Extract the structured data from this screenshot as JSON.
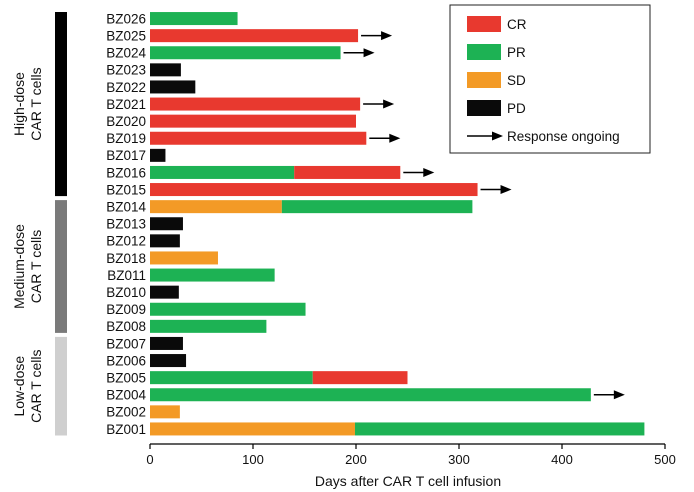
{
  "chart_data": {
    "type": "bar",
    "orientation": "horizontal",
    "stacked": true,
    "xlabel": "Days after CAR T cell infusion",
    "xlim": [
      0,
      500
    ],
    "xticks": [
      0,
      100,
      200,
      300,
      400,
      500
    ],
    "colors": {
      "CR": "#e8392f",
      "PR": "#1db254",
      "SD": "#f39a26",
      "PD": "#0a0a0a"
    },
    "legend": {
      "placement": "top-right",
      "entries": [
        {
          "key": "CR",
          "label": "CR"
        },
        {
          "key": "PR",
          "label": "PR"
        },
        {
          "key": "SD",
          "label": "SD"
        },
        {
          "key": "PD",
          "label": "PD"
        }
      ],
      "ongoing_label": "Response ongoing"
    },
    "groups": [
      {
        "label": "High-dose CAR T cells",
        "lines": [
          "High-dose",
          "CAR T cells"
        ],
        "color": "#000000",
        "from": "BZ026",
        "to": "BZ015"
      },
      {
        "label": "Medium-dose CAR T cells",
        "lines": [
          "Medium-dose",
          "CAR T cells"
        ],
        "color": "#7a7a7a",
        "from": "BZ014",
        "to": "BZ008"
      },
      {
        "label": "Low-dose CAR T cells",
        "lines": [
          "Low-dose",
          "CAR T cells"
        ],
        "color": "#cfcfcf",
        "from": "BZ007",
        "to": "BZ001"
      }
    ],
    "patients": [
      {
        "id": "BZ026",
        "segments": [
          {
            "status": "PR",
            "start": 0,
            "end": 85
          }
        ],
        "ongoing": false
      },
      {
        "id": "BZ025",
        "segments": [
          {
            "status": "CR",
            "start": 0,
            "end": 202
          }
        ],
        "ongoing": true
      },
      {
        "id": "BZ024",
        "segments": [
          {
            "status": "PR",
            "start": 0,
            "end": 185
          }
        ],
        "ongoing": true
      },
      {
        "id": "BZ023",
        "segments": [
          {
            "status": "PD",
            "start": 0,
            "end": 30
          }
        ],
        "ongoing": false
      },
      {
        "id": "BZ022",
        "segments": [
          {
            "status": "PD",
            "start": 0,
            "end": 44
          }
        ],
        "ongoing": false
      },
      {
        "id": "BZ021",
        "segments": [
          {
            "status": "CR",
            "start": 0,
            "end": 204
          }
        ],
        "ongoing": true
      },
      {
        "id": "BZ020",
        "segments": [
          {
            "status": "CR",
            "start": 0,
            "end": 200
          }
        ],
        "ongoing": false
      },
      {
        "id": "BZ019",
        "segments": [
          {
            "status": "CR",
            "start": 0,
            "end": 210
          }
        ],
        "ongoing": true
      },
      {
        "id": "BZ017",
        "segments": [
          {
            "status": "PD",
            "start": 0,
            "end": 15
          }
        ],
        "ongoing": false
      },
      {
        "id": "BZ016",
        "segments": [
          {
            "status": "PR",
            "start": 0,
            "end": 140
          },
          {
            "status": "CR",
            "start": 140,
            "end": 243
          }
        ],
        "ongoing": true
      },
      {
        "id": "BZ015",
        "segments": [
          {
            "status": "CR",
            "start": 0,
            "end": 318
          }
        ],
        "ongoing": true
      },
      {
        "id": "BZ014",
        "segments": [
          {
            "status": "SD",
            "start": 0,
            "end": 128
          },
          {
            "status": "PR",
            "start": 128,
            "end": 313
          }
        ],
        "ongoing": false
      },
      {
        "id": "BZ013",
        "segments": [
          {
            "status": "PD",
            "start": 0,
            "end": 32
          }
        ],
        "ongoing": false
      },
      {
        "id": "BZ012",
        "segments": [
          {
            "status": "PD",
            "start": 0,
            "end": 29
          }
        ],
        "ongoing": false
      },
      {
        "id": "BZ018",
        "segments": [
          {
            "status": "SD",
            "start": 0,
            "end": 66
          }
        ],
        "ongoing": false
      },
      {
        "id": "BZ011",
        "segments": [
          {
            "status": "PR",
            "start": 0,
            "end": 121
          }
        ],
        "ongoing": false
      },
      {
        "id": "BZ010",
        "segments": [
          {
            "status": "PD",
            "start": 0,
            "end": 28
          }
        ],
        "ongoing": false
      },
      {
        "id": "BZ009",
        "segments": [
          {
            "status": "PR",
            "start": 0,
            "end": 151
          }
        ],
        "ongoing": false
      },
      {
        "id": "BZ008",
        "segments": [
          {
            "status": "PR",
            "start": 0,
            "end": 113
          }
        ],
        "ongoing": false
      },
      {
        "id": "BZ007",
        "segments": [
          {
            "status": "PD",
            "start": 0,
            "end": 32
          }
        ],
        "ongoing": false
      },
      {
        "id": "BZ006",
        "segments": [
          {
            "status": "PD",
            "start": 0,
            "end": 35
          }
        ],
        "ongoing": false
      },
      {
        "id": "BZ005",
        "segments": [
          {
            "status": "PR",
            "start": 0,
            "end": 158
          },
          {
            "status": "CR",
            "start": 158,
            "end": 250
          }
        ],
        "ongoing": false
      },
      {
        "id": "BZ004",
        "segments": [
          {
            "status": "PR",
            "start": 0,
            "end": 428
          }
        ],
        "ongoing": true
      },
      {
        "id": "BZ002",
        "segments": [
          {
            "status": "SD",
            "start": 0,
            "end": 29
          }
        ],
        "ongoing": false
      },
      {
        "id": "BZ001",
        "segments": [
          {
            "status": "SD",
            "start": 0,
            "end": 199
          },
          {
            "status": "PR",
            "start": 199,
            "end": 480
          }
        ],
        "ongoing": false
      }
    ]
  }
}
